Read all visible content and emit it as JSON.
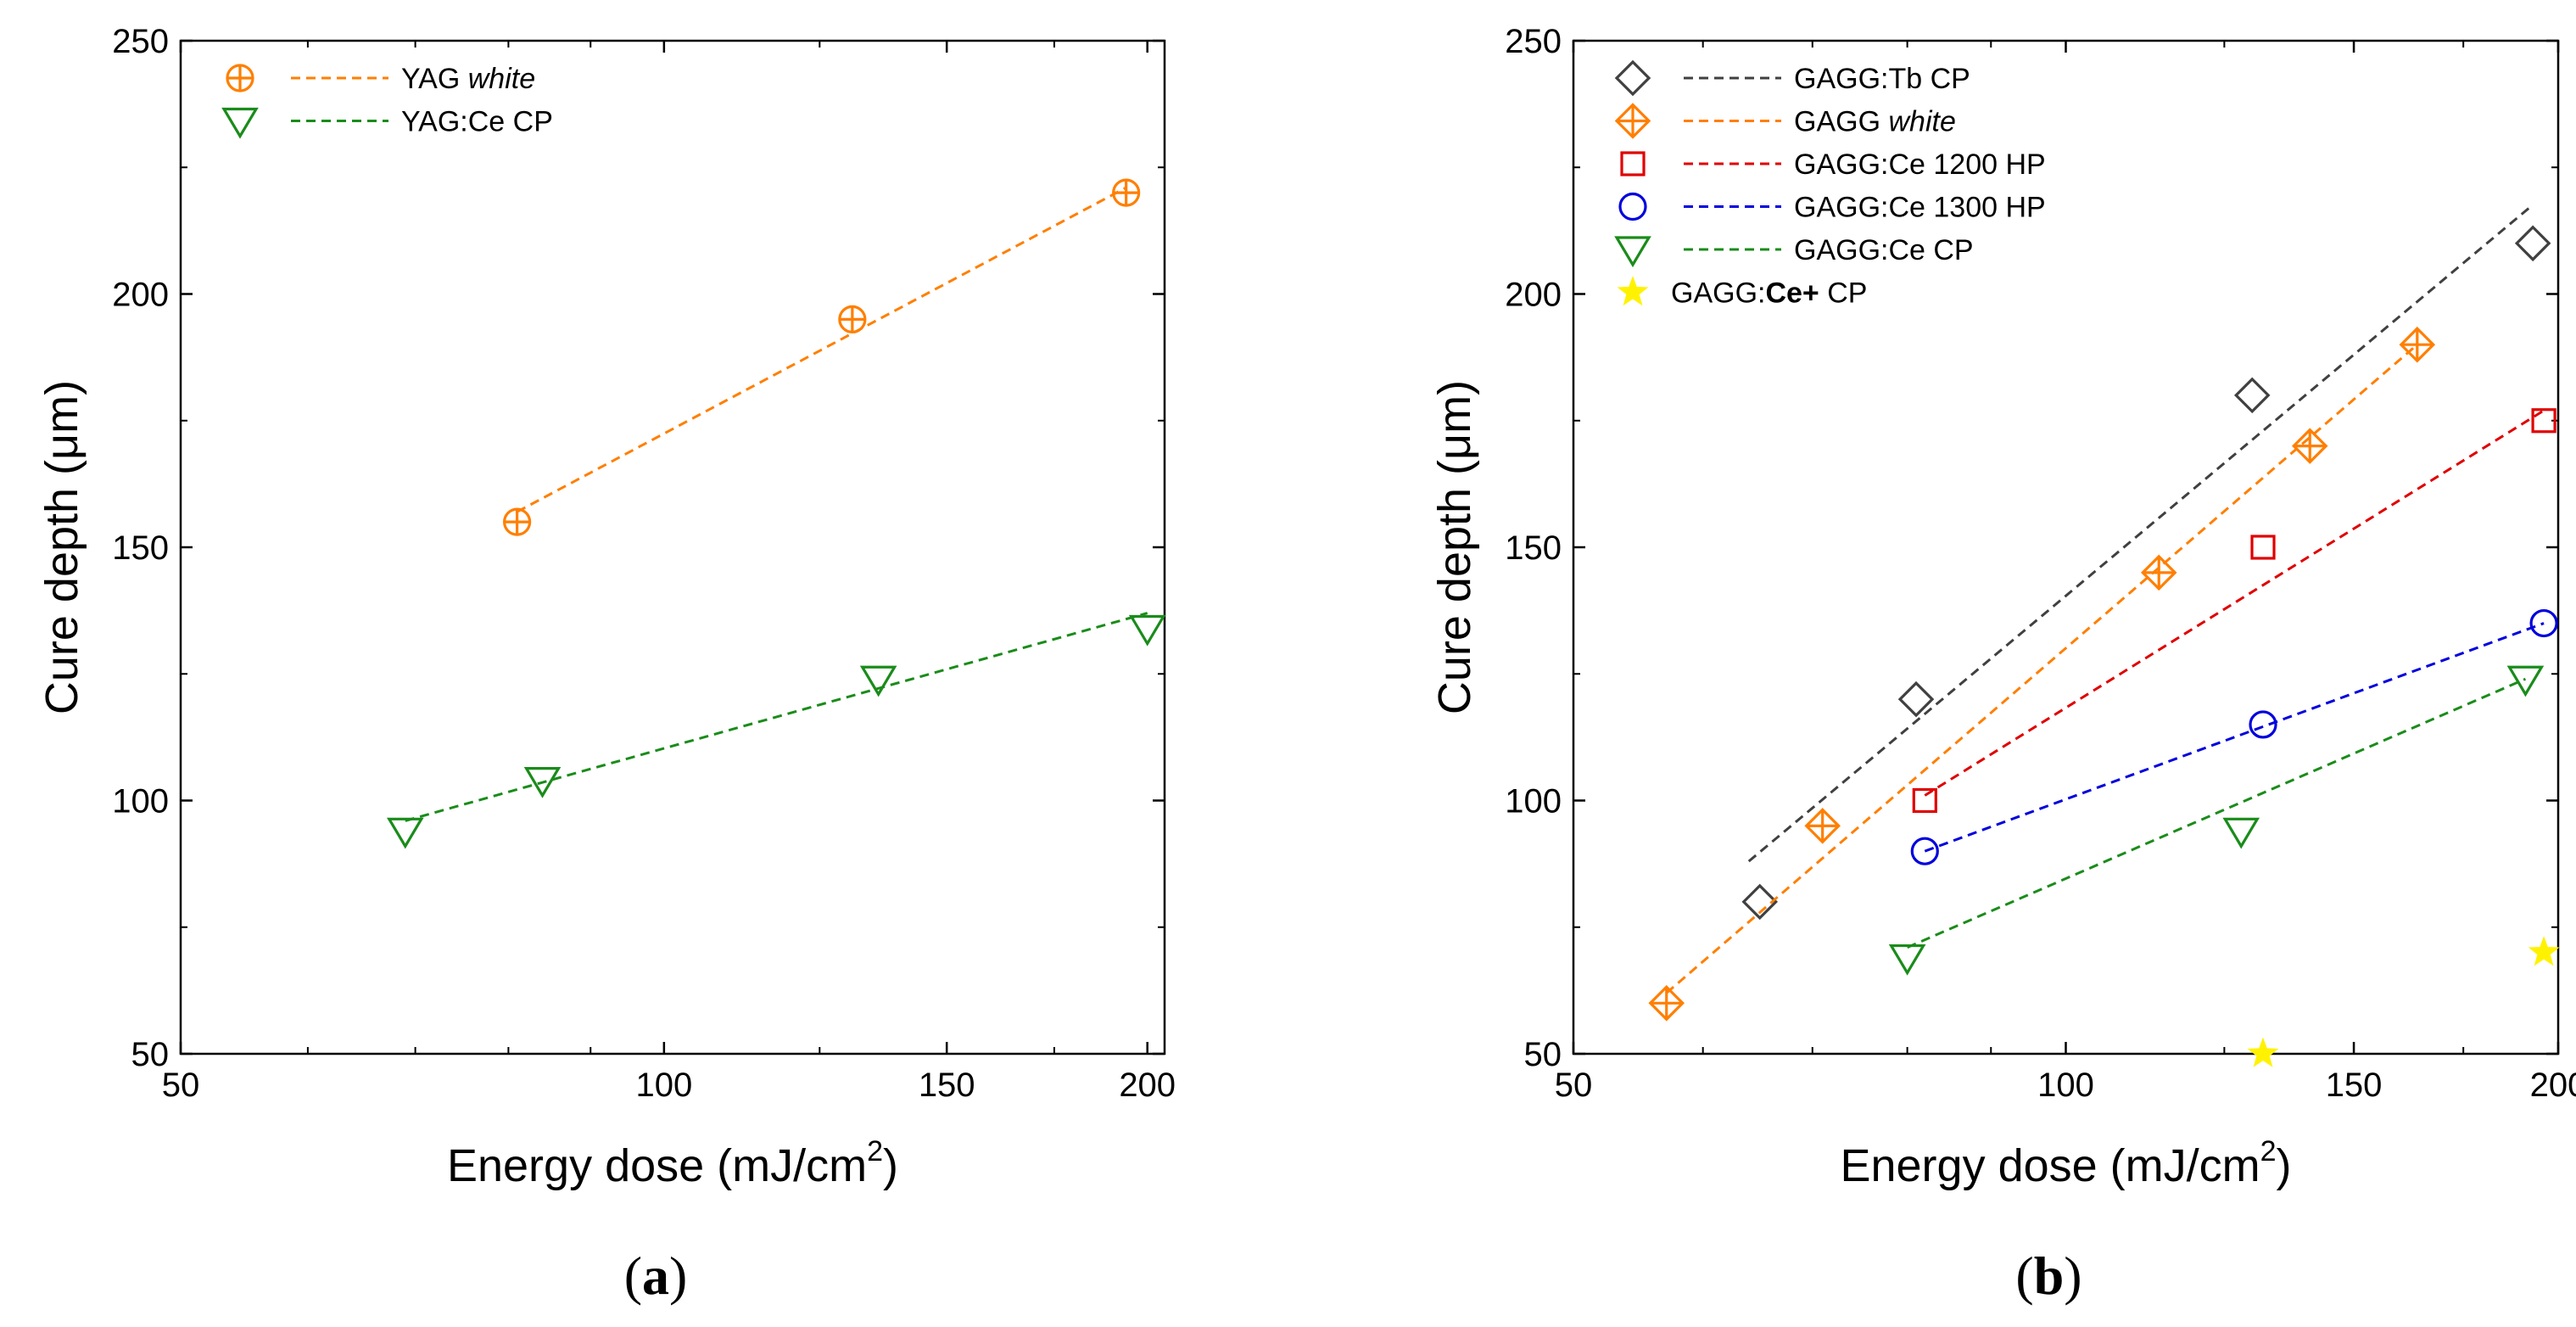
{
  "chart_data": [
    {
      "type": "scatter",
      "panel_label": "a",
      "xscale": "log",
      "xlim": [
        50,
        205
      ],
      "ylim": [
        50,
        250
      ],
      "xticks": [
        50,
        100,
        150,
        200
      ],
      "yticks": [
        50,
        100,
        150,
        200,
        250
      ],
      "xlabel": "Energy dose (mJ/cm",
      "xlabel_sup": "2",
      "xlabel_tail": ")",
      "ylabel": "Cure depth (μm)",
      "legend_position": "top-left",
      "series": [
        {
          "name": "YAG",
          "name_italic": "white",
          "marker": "circle-plus",
          "color": "#FF7F00",
          "x": [
            81,
            131,
            194
          ],
          "y": [
            155,
            195,
            220
          ],
          "fit_x": [
            81,
            194
          ],
          "fit_y": [
            157,
            221
          ]
        },
        {
          "name": "YAG:Ce CP",
          "marker": "triangle-down",
          "color": "#1A8C1A",
          "x": [
            69,
            84,
            136,
            200
          ],
          "y": [
            94,
            104,
            124,
            134
          ],
          "fit_x": [
            69,
            200
          ],
          "fit_y": [
            96,
            137
          ]
        }
      ]
    },
    {
      "type": "scatter",
      "panel_label": "b",
      "xscale": "log",
      "xlim": [
        50,
        200
      ],
      "ylim": [
        50,
        250
      ],
      "xticks": [
        50,
        100,
        150,
        200
      ],
      "yticks": [
        50,
        100,
        150,
        200,
        250
      ],
      "xlabel": "Energy dose (mJ/cm",
      "xlabel_sup": "2",
      "xlabel_tail": ")",
      "ylabel": "Cure depth (μm)",
      "legend_position": "top-left",
      "series": [
        {
          "name": "GAGG:Tb CP",
          "marker": "diamond",
          "color": "#404040",
          "x": [
            65,
            81,
            130,
            193
          ],
          "y": [
            80,
            120,
            180,
            210
          ],
          "fit_x": [
            64,
            192
          ],
          "fit_y": [
            88,
            217
          ]
        },
        {
          "name": "GAGG",
          "name_italic": "white",
          "marker": "diamond-plus",
          "color": "#FF7F00",
          "x": [
            57,
            71,
            114,
            141,
            164
          ],
          "y": [
            60,
            95,
            145,
            170,
            190
          ],
          "fit_x": [
            57,
            164
          ],
          "fit_y": [
            62,
            190
          ]
        },
        {
          "name": "GAGG:Ce 1200 HP",
          "marker": "square",
          "color": "#E00000",
          "x": [
            82,
            132,
            196
          ],
          "y": [
            100,
            150,
            175
          ],
          "fit_x": [
            82,
            196
          ],
          "fit_y": [
            101,
            177
          ]
        },
        {
          "name": "GAGG:Ce 1300 HP",
          "marker": "circle",
          "color": "#0000DD",
          "x": [
            82,
            132,
            196
          ],
          "y": [
            90,
            115,
            135
          ],
          "fit_x": [
            82,
            196
          ],
          "fit_y": [
            90,
            135
          ]
        },
        {
          "name": "GAGG:Ce CP",
          "marker": "triangle-down",
          "color": "#1A8C1A",
          "x": [
            80,
            128,
            191
          ],
          "y": [
            69,
            94,
            124
          ],
          "fit_x": [
            80,
            191
          ],
          "fit_y": [
            71,
            124
          ]
        },
        {
          "name": "GAGG:",
          "name_bold": "Ce+",
          "name_tail": " CP",
          "marker": "star",
          "color": "#FFF200",
          "x": [
            132,
            196
          ],
          "y": [
            50,
            70
          ]
        }
      ]
    }
  ]
}
